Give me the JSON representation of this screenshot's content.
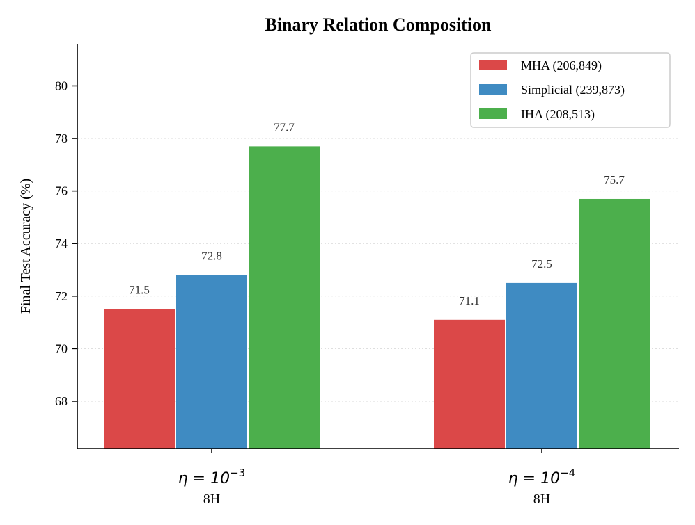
{
  "chart_data": {
    "type": "bar",
    "title": "Binary Relation Composition",
    "xlabel": "",
    "ylabel": "Final Test Accuracy (%)",
    "ylim": [
      66.2,
      81.6
    ],
    "yticks": [
      68,
      70,
      72,
      74,
      76,
      78,
      80
    ],
    "grid": "y-dotted",
    "legend_position": "top-right",
    "categories": [
      {
        "eta_base": "η = 10",
        "eta_exp": "−3",
        "sub": "8H"
      },
      {
        "eta_base": "η = 10",
        "eta_exp": "−4",
        "sub": "8H"
      }
    ],
    "series": [
      {
        "name": "MHA  (206,849)",
        "color": "#DB4848",
        "values": [
          71.5,
          71.1
        ]
      },
      {
        "name": "Simplicial  (239,873)",
        "color": "#3F8BC2",
        "values": [
          72.8,
          72.5
        ]
      },
      {
        "name": "IHA  (208,513)",
        "color": "#4CAF4C",
        "values": [
          77.7,
          75.7
        ]
      }
    ]
  }
}
